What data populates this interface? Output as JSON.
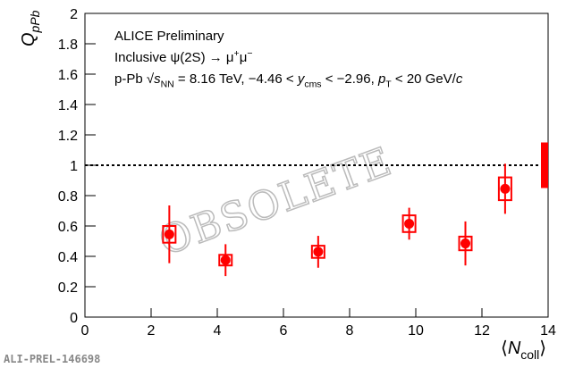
{
  "chart_data": {
    "type": "scatter",
    "ylabel": [
      {
        "text": "Q"
      },
      {
        "text": "pPb",
        "style": "sub"
      }
    ],
    "xlabel": [
      {
        "text": "⟨"
      },
      {
        "text": "N",
        "style": "italic"
      },
      {
        "text": "coll",
        "style": "sub"
      },
      {
        "text": "⟩"
      }
    ],
    "annotations": [
      [
        {
          "text": "ALICE Preliminary"
        }
      ],
      [
        {
          "text": "Inclusive ψ(2S) → μ"
        },
        {
          "text": "+",
          "style": "sup"
        },
        {
          "text": "μ"
        },
        {
          "text": "−",
          "style": "sup"
        }
      ],
      [
        {
          "text": "p-Pb √"
        },
        {
          "text": "s",
          "style": "italic"
        },
        {
          "text": "NN",
          "style": "sub"
        },
        {
          "text": " = 8.16 TeV, −4.46 < "
        },
        {
          "text": "y",
          "style": "italic"
        },
        {
          "text": "cms",
          "style": "sub"
        },
        {
          "text": " < −2.96, "
        },
        {
          "text": "p",
          "style": "italic"
        },
        {
          "text": "T",
          "style": "sub"
        },
        {
          "text": " < 20 GeV/"
        },
        {
          "text": "c",
          "style": "italic"
        }
      ]
    ],
    "watermark": "OBSOLETE",
    "footer": "ALI-PREL-146698",
    "xlim": [
      0,
      14
    ],
    "ylim": [
      0,
      2
    ],
    "xticks": [
      0,
      2,
      4,
      6,
      8,
      10,
      12,
      14
    ],
    "yticks": [
      0,
      0.2,
      0.4,
      0.6,
      0.8,
      1,
      1.2,
      1.4,
      1.6,
      1.8,
      2
    ],
    "reference_line": 1,
    "global_uncertainty": {
      "x": 14,
      "center": 1,
      "half_width": 0.15,
      "color": "#ff0000"
    },
    "series": [
      {
        "color": "#ff0000",
        "x": [
          2.55,
          4.25,
          7.05,
          9.8,
          11.5,
          12.7
        ],
        "values": [
          0.545,
          0.375,
          0.43,
          0.615,
          0.485,
          0.845
        ],
        "errors": [
          0.19,
          0.105,
          0.105,
          0.105,
          0.145,
          0.165
        ],
        "syst": [
          0.055,
          0.035,
          0.04,
          0.055,
          0.045,
          0.075
        ]
      }
    ]
  }
}
